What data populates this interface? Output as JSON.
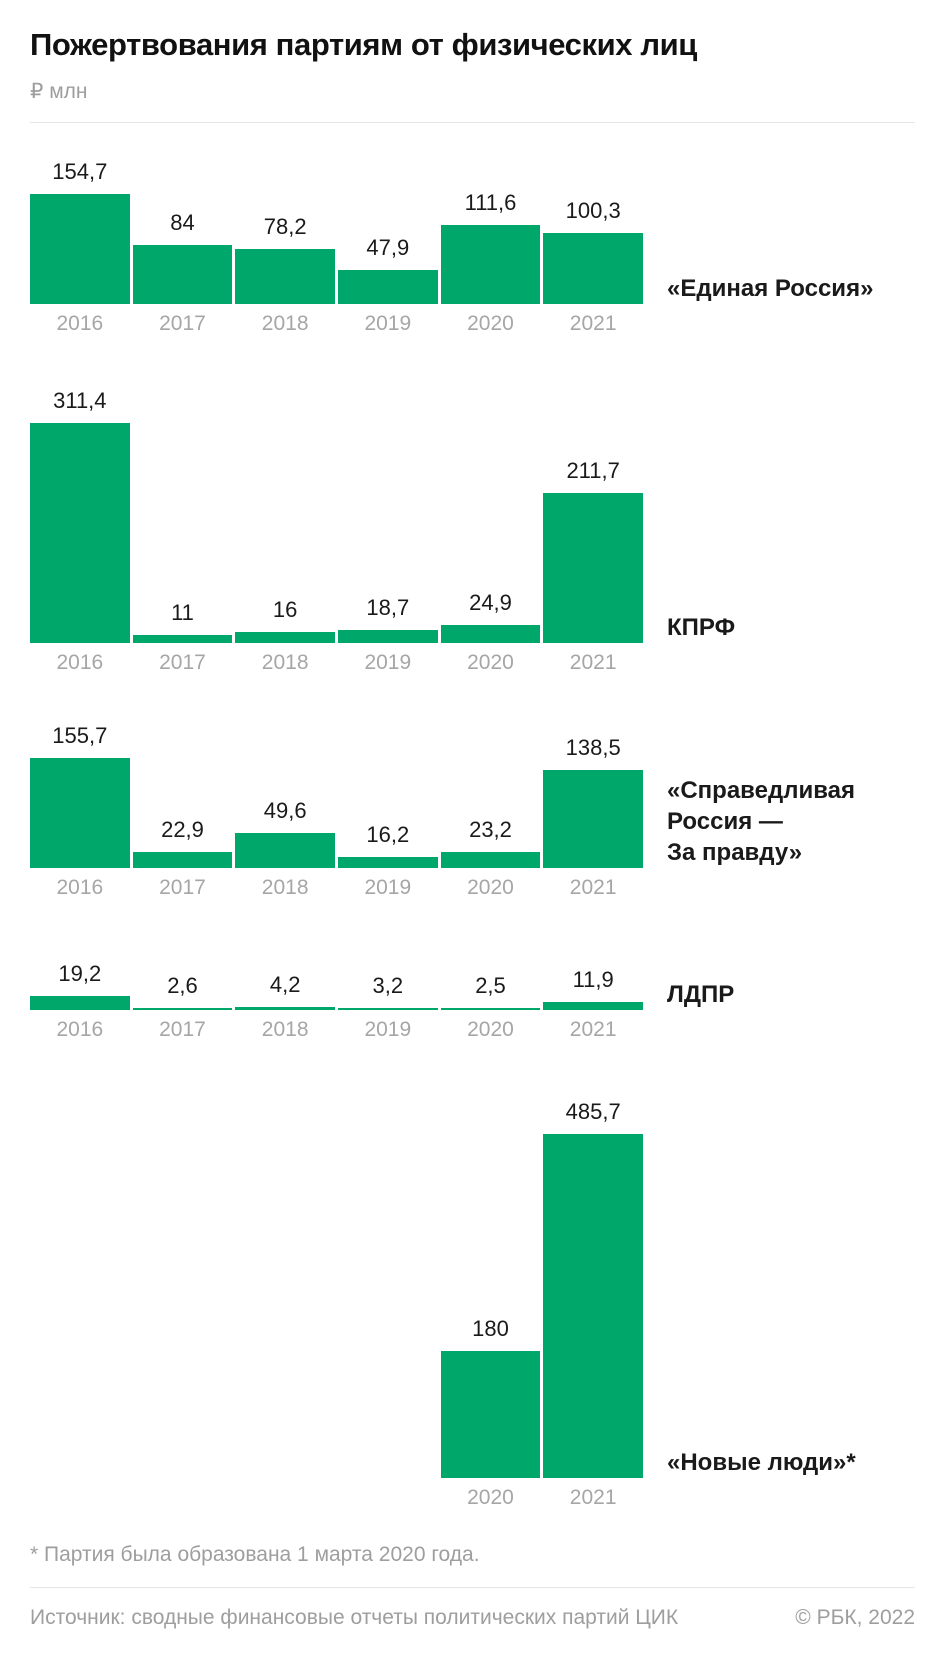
{
  "header": {
    "title": "Пожертвования партиям от физических лиц",
    "unit": "₽ млн"
  },
  "chart_data": {
    "type": "bar",
    "title": "Пожертвования партиям от физических лиц",
    "unit": "₽ млн",
    "bar_color": "#00a76b",
    "categories": [
      "2016",
      "2017",
      "2018",
      "2019",
      "2020",
      "2021"
    ],
    "series": [
      {
        "name": "«Единая Россия»",
        "label_lines": [
          "«Единая Россия»"
        ],
        "values": [
          154.7,
          84,
          78.2,
          47.9,
          111.6,
          100.3
        ]
      },
      {
        "name": "КПРФ",
        "label_lines": [
          "КПРФ"
        ],
        "values": [
          311.4,
          11,
          16,
          18.7,
          24.9,
          211.7
        ]
      },
      {
        "name": "«Справедливая Россия — За правду»",
        "label_lines": [
          "«Справедливая",
          "Россия —",
          "За правду»"
        ],
        "values": [
          155.7,
          22.9,
          49.6,
          16.2,
          23.2,
          138.5
        ]
      },
      {
        "name": "ЛДПР",
        "label_lines": [
          "ЛДПР"
        ],
        "values": [
          19.2,
          2.6,
          4.2,
          3.2,
          2.5,
          11.9
        ]
      },
      {
        "name": "«Новые люди»*",
        "label_lines": [
          "«Новые люди»*"
        ],
        "values": [
          null,
          null,
          null,
          null,
          180,
          485.7
        ]
      }
    ],
    "layout": {
      "grid": false,
      "axes": "none",
      "value_labels": "above-bars",
      "series_labels": "right-of-bars",
      "decimal_separator": ","
    }
  },
  "footnote": "* Партия была образована 1 марта 2020 года.",
  "footer": {
    "source": "Источник: сводные финансовые отчеты политических партий ЦИК",
    "copyright": "© РБК, 2022"
  }
}
